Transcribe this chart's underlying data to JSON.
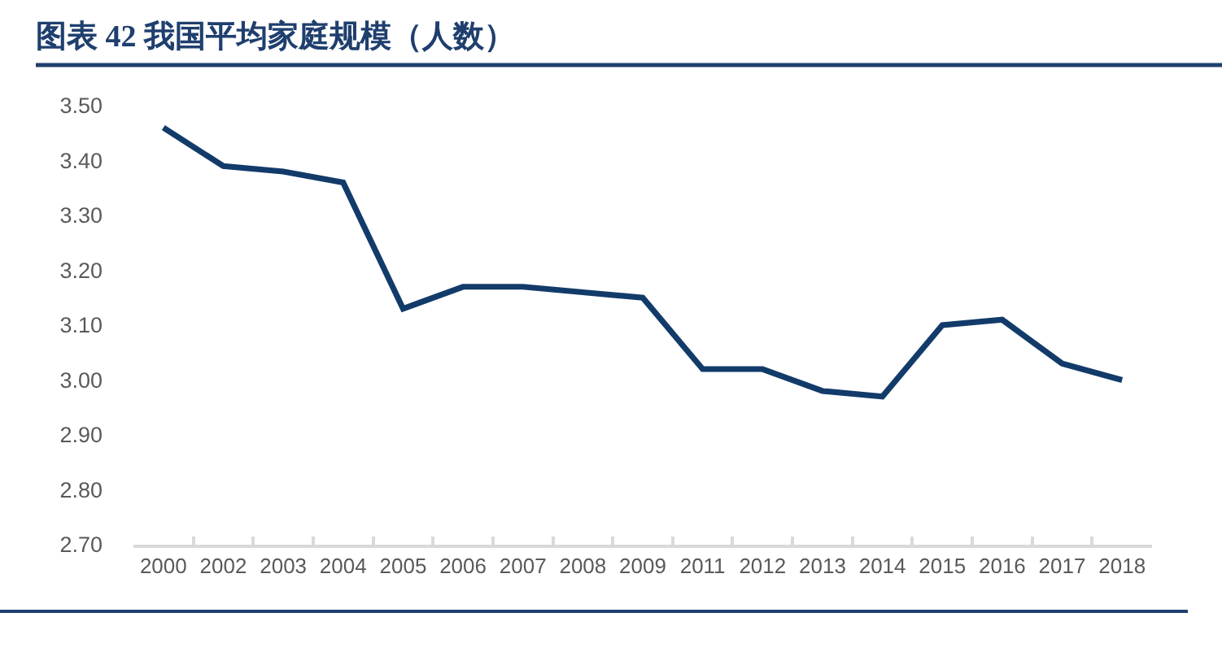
{
  "chart_data": {
    "type": "line",
    "title": "图表 42 我国平均家庭规模（人数）",
    "categories": [
      "2000",
      "2002",
      "2003",
      "2004",
      "2005",
      "2006",
      "2007",
      "2008",
      "2009",
      "2011",
      "2012",
      "2013",
      "2014",
      "2015",
      "2016",
      "2017",
      "2018"
    ],
    "series": [
      {
        "color": "#123b6a",
        "values": [
          3.46,
          3.39,
          3.38,
          3.36,
          3.13,
          3.17,
          3.17,
          3.16,
          3.15,
          3.02,
          3.02,
          2.98,
          2.97,
          3.1,
          3.11,
          3.03,
          3.0
        ]
      }
    ],
    "ylim": [
      2.7,
      3.5
    ],
    "yticks": [
      {
        "value": 2.7,
        "label": "2.70"
      },
      {
        "value": 2.8,
        "label": "2.80"
      },
      {
        "value": 2.9,
        "label": "2.90"
      },
      {
        "value": 3.0,
        "label": "3.00"
      },
      {
        "value": 3.1,
        "label": "3.10"
      },
      {
        "value": 3.2,
        "label": "3.20"
      },
      {
        "value": 3.3,
        "label": "3.30"
      },
      {
        "value": 3.4,
        "label": "3.40"
      },
      {
        "value": 3.5,
        "label": "3.50"
      }
    ],
    "grid": false,
    "marker": "none",
    "line_style": "solid"
  }
}
